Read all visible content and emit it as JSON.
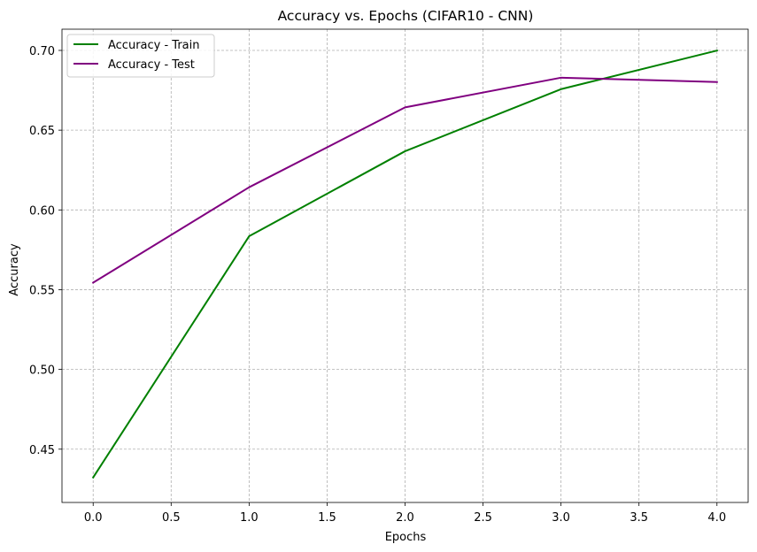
{
  "chart_data": {
    "type": "line",
    "title": "Accuracy vs. Epochs (CIFAR10 - CNN)",
    "xlabel": "Epochs",
    "ylabel": "Accuracy",
    "x": [
      0,
      1,
      2,
      3,
      4
    ],
    "xlim": [
      -0.2,
      4.2
    ],
    "ylim": [
      0.4166,
      0.7133
    ],
    "xticks": [
      0.0,
      0.5,
      1.0,
      1.5,
      2.0,
      2.5,
      3.0,
      3.5,
      4.0
    ],
    "xtick_labels": [
      "0.0",
      "0.5",
      "1.0",
      "1.5",
      "2.0",
      "2.5",
      "3.0",
      "3.5",
      "4.0"
    ],
    "yticks": [
      0.45,
      0.5,
      0.55,
      0.6,
      0.65,
      0.7
    ],
    "ytick_labels": [
      "0.45",
      "0.50",
      "0.55",
      "0.60",
      "0.65",
      "0.70"
    ],
    "grid": true,
    "legend_position": "upper-left",
    "series": [
      {
        "name": "Accuracy - Train",
        "color": "#008000",
        "values": [
          0.4323,
          0.5835,
          0.6368,
          0.6757,
          0.6999
        ]
      },
      {
        "name": "Accuracy - Test",
        "color": "#800080",
        "values": [
          0.5544,
          0.6142,
          0.6643,
          0.6829,
          0.6802
        ]
      }
    ]
  }
}
